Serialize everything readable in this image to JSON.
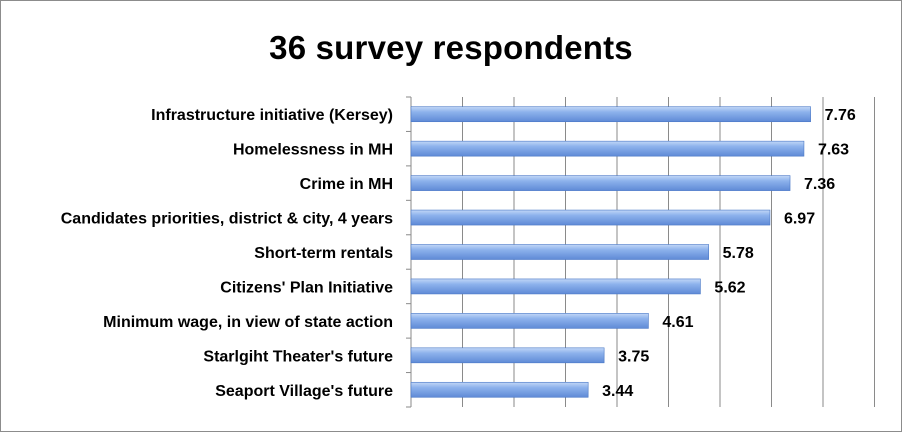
{
  "chart_data": {
    "type": "bar",
    "orientation": "horizontal",
    "title": "36 survey respondents",
    "categories": [
      "Infrastructure initiative (Kersey)",
      "Homelessness in MH",
      "Crime in MH",
      "Candidates priorities, district & city, 4 years",
      "Short-term rentals",
      "Citizens' Plan Initiative",
      "Minimum wage, in view of state action",
      "Starlgiht Theater's future",
      "Seaport Village's future"
    ],
    "values": [
      7.76,
      7.63,
      7.36,
      6.97,
      5.78,
      5.62,
      4.61,
      3.75,
      3.44
    ],
    "value_labels": [
      "7.76",
      "7.63",
      "7.36",
      "6.97",
      "5.78",
      "5.62",
      "4.61",
      "3.75",
      "3.44"
    ],
    "xlim": [
      0,
      9
    ],
    "xlabel": "",
    "ylabel": "",
    "grid": "vertical",
    "legend": "none",
    "colors": {
      "bar": "#6f9be0",
      "bar_light": "#b3cdf5",
      "bar_dark": "#4a78c6",
      "grid": "#8a8a8a"
    }
  }
}
